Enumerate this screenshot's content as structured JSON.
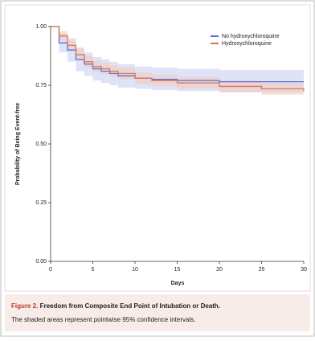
{
  "chart_data": {
    "type": "step",
    "x_label": "Days",
    "y_label": "Probability of Being Event-free",
    "x": [
      0,
      1,
      2,
      3,
      4,
      5,
      6,
      7,
      8,
      10,
      12,
      15,
      20,
      25,
      30
    ],
    "series": [
      {
        "name": "No hydroxychloroquine",
        "color": "#5a6fd2",
        "band_color": "#c9d1f2",
        "values": [
          1.0,
          0.93,
          0.9,
          0.86,
          0.84,
          0.82,
          0.81,
          0.8,
          0.79,
          0.78,
          0.775,
          0.77,
          0.765,
          0.765,
          0.765
        ],
        "lower": [
          1.0,
          0.89,
          0.85,
          0.81,
          0.79,
          0.77,
          0.76,
          0.75,
          0.74,
          0.735,
          0.73,
          0.725,
          0.72,
          0.72,
          0.72
        ],
        "upper": [
          1.0,
          0.97,
          0.95,
          0.91,
          0.89,
          0.87,
          0.86,
          0.85,
          0.84,
          0.83,
          0.825,
          0.82,
          0.815,
          0.815,
          0.815
        ]
      },
      {
        "name": "Hydroxychloroquine",
        "color": "#d8785a",
        "band_color": "#f1cbbd",
        "values": [
          1.0,
          0.96,
          0.92,
          0.88,
          0.85,
          0.83,
          0.82,
          0.81,
          0.8,
          0.78,
          0.77,
          0.76,
          0.745,
          0.735,
          0.725
        ],
        "lower": [
          1.0,
          0.94,
          0.9,
          0.855,
          0.825,
          0.805,
          0.795,
          0.785,
          0.775,
          0.755,
          0.745,
          0.735,
          0.72,
          0.71,
          0.7
        ],
        "upper": [
          1.0,
          0.98,
          0.94,
          0.905,
          0.875,
          0.855,
          0.845,
          0.835,
          0.825,
          0.805,
          0.795,
          0.785,
          0.77,
          0.76,
          0.75
        ]
      }
    ],
    "xlim": [
      0,
      30
    ],
    "xticks": [
      0,
      5,
      10,
      15,
      20,
      25,
      30
    ],
    "ylim": [
      0,
      1
    ],
    "yticks": [
      {
        "value": 0,
        "label": "0.00"
      },
      {
        "value": 0.25,
        "label": "0.25"
      },
      {
        "value": 0.5,
        "label": "0.50"
      },
      {
        "value": 0.75,
        "label": "0.75"
      },
      {
        "value": 1,
        "label": "1.00"
      }
    ],
    "legend": "upper right",
    "caption_label": "Figure 2.",
    "caption_title": "Freedom from Composite End Point of Intubation or Death.",
    "caption_text": "The shaded areas represent pointwise 95% confidence intervals."
  }
}
